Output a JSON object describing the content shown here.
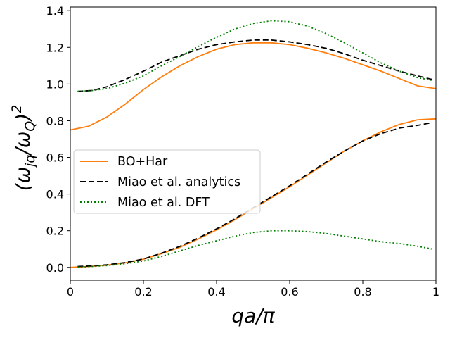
{
  "chart_data": {
    "type": "line",
    "xlabel": "qa/π",
    "ylabel": "(ω_jq/ω_Q)^2",
    "xlim": [
      0,
      1
    ],
    "ylim": [
      -0.07,
      1.42
    ],
    "xticks": [
      0,
      0.2,
      0.4,
      0.6,
      0.8,
      1
    ],
    "xtick_labels": [
      "0",
      "0.2",
      "0.4",
      "0.6",
      "0.8",
      "1"
    ],
    "yticks": [
      0.0,
      0.2,
      0.4,
      0.6,
      0.8,
      1.0,
      1.2,
      1.4
    ],
    "ytick_labels": [
      "0.0",
      "0.2",
      "0.4",
      "0.6",
      "0.8",
      "1.0",
      "1.2",
      "1.4"
    ],
    "grid": false,
    "legend_position": "center-left",
    "series": [
      {
        "name": "BO+Har",
        "color": "#ff7f0e",
        "style": "solid",
        "branch": "upper",
        "x": [
          0,
          0.05,
          0.1,
          0.15,
          0.2,
          0.25,
          0.3,
          0.35,
          0.4,
          0.45,
          0.5,
          0.55,
          0.6,
          0.65,
          0.7,
          0.75,
          0.8,
          0.85,
          0.9,
          0.95,
          1.0
        ],
        "y": [
          0.75,
          0.77,
          0.82,
          0.89,
          0.97,
          1.04,
          1.1,
          1.15,
          1.19,
          1.215,
          1.225,
          1.225,
          1.215,
          1.195,
          1.17,
          1.14,
          1.105,
          1.07,
          1.03,
          0.99,
          0.975
        ]
      },
      {
        "name": "BO+Har",
        "color": "#ff7f0e",
        "style": "solid",
        "branch": "lower",
        "x": [
          0,
          0.05,
          0.1,
          0.15,
          0.2,
          0.25,
          0.3,
          0.35,
          0.4,
          0.45,
          0.5,
          0.55,
          0.6,
          0.65,
          0.7,
          0.75,
          0.8,
          0.85,
          0.9,
          0.95,
          1.0
        ],
        "y": [
          0.0,
          0.005,
          0.012,
          0.025,
          0.045,
          0.075,
          0.11,
          0.155,
          0.205,
          0.26,
          0.32,
          0.38,
          0.44,
          0.505,
          0.57,
          0.635,
          0.69,
          0.74,
          0.78,
          0.805,
          0.81
        ]
      },
      {
        "name": "Miao et al. analytics",
        "color": "#000000",
        "style": "dashed",
        "branch": "upper",
        "x": [
          0.02,
          0.06,
          0.1,
          0.15,
          0.2,
          0.25,
          0.3,
          0.35,
          0.4,
          0.45,
          0.5,
          0.55,
          0.6,
          0.65,
          0.7,
          0.75,
          0.8,
          0.85,
          0.9,
          0.95,
          0.99
        ],
        "y": [
          0.96,
          0.965,
          0.985,
          1.025,
          1.07,
          1.12,
          1.155,
          1.19,
          1.215,
          1.23,
          1.24,
          1.24,
          1.23,
          1.215,
          1.195,
          1.165,
          1.13,
          1.1,
          1.07,
          1.045,
          1.025
        ]
      },
      {
        "name": "Miao et al. analytics",
        "color": "#000000",
        "style": "dashed",
        "branch": "lower",
        "x": [
          0.02,
          0.06,
          0.1,
          0.15,
          0.2,
          0.25,
          0.3,
          0.35,
          0.4,
          0.45,
          0.5,
          0.55,
          0.6,
          0.65,
          0.7,
          0.75,
          0.8,
          0.85,
          0.9,
          0.95,
          0.99
        ],
        "y": [
          0.005,
          0.008,
          0.014,
          0.026,
          0.046,
          0.078,
          0.115,
          0.16,
          0.21,
          0.265,
          0.325,
          0.385,
          0.445,
          0.51,
          0.575,
          0.635,
          0.69,
          0.73,
          0.76,
          0.775,
          0.79
        ]
      },
      {
        "name": "Miao et al. DFT",
        "color": "#008000",
        "style": "dotted",
        "branch": "upper",
        "x": [
          0.02,
          0.06,
          0.1,
          0.15,
          0.2,
          0.25,
          0.3,
          0.35,
          0.4,
          0.45,
          0.5,
          0.55,
          0.6,
          0.65,
          0.7,
          0.75,
          0.8,
          0.85,
          0.9,
          0.95,
          0.99
        ],
        "y": [
          0.96,
          0.965,
          0.975,
          1.005,
          1.045,
          1.1,
          1.15,
          1.205,
          1.255,
          1.3,
          1.33,
          1.345,
          1.34,
          1.315,
          1.275,
          1.225,
          1.17,
          1.115,
          1.07,
          1.035,
          1.02
        ]
      },
      {
        "name": "Miao et al. DFT",
        "color": "#008000",
        "style": "dotted",
        "branch": "lower",
        "x": [
          0.02,
          0.06,
          0.1,
          0.15,
          0.2,
          0.25,
          0.3,
          0.35,
          0.4,
          0.45,
          0.5,
          0.55,
          0.6,
          0.65,
          0.7,
          0.75,
          0.8,
          0.85,
          0.9,
          0.95,
          0.99
        ],
        "y": [
          0.002,
          0.005,
          0.01,
          0.02,
          0.035,
          0.06,
          0.09,
          0.12,
          0.145,
          0.17,
          0.19,
          0.2,
          0.2,
          0.195,
          0.185,
          0.17,
          0.155,
          0.14,
          0.13,
          0.115,
          0.1
        ]
      }
    ],
    "legend": [
      {
        "label": "BO+Har",
        "color": "#ff7f0e",
        "style": "solid"
      },
      {
        "label": "Miao et al. analytics",
        "color": "#000000",
        "style": "dashed"
      },
      {
        "label": "Miao et al. DFT",
        "color": "#008000",
        "style": "dotted"
      }
    ]
  }
}
